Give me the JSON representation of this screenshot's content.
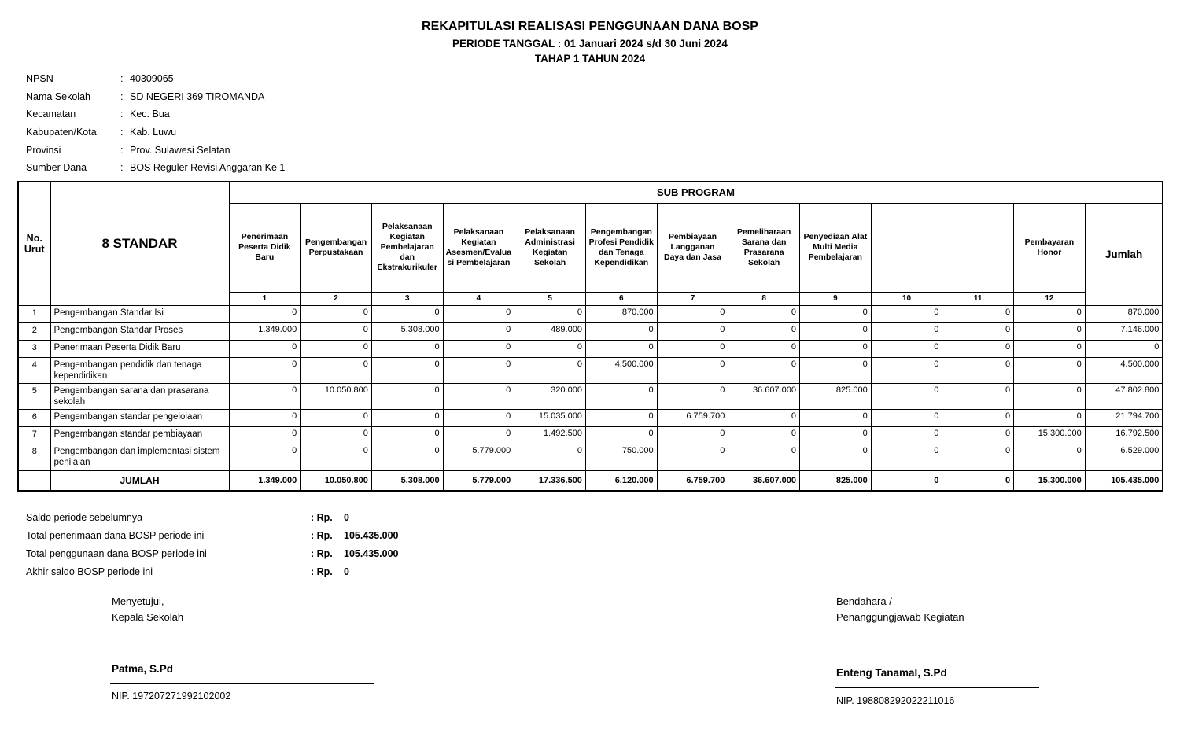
{
  "header": {
    "title": "REKAPITULASI REALISASI PENGGUNAAN DANA BOSP",
    "period": "PERIODE TANGGAL : 01 Januari 2024 s/d 30 Juni 2024",
    "phase": "TAHAP 1 TAHUN 2024"
  },
  "meta": {
    "separator": ":",
    "rows": [
      {
        "label": "NPSN",
        "value": "40309065"
      },
      {
        "label": "Nama Sekolah",
        "value": "SD NEGERI 369 TIROMANDA"
      },
      {
        "label": "Kecamatan",
        "value": "Kec. Bua"
      },
      {
        "label": "Kabupaten/Kota",
        "value": "Kab. Luwu"
      },
      {
        "label": "Provinsi",
        "value": "Prov. Sulawesi Selatan"
      },
      {
        "label": "Sumber Dana",
        "value": "BOS Reguler Revisi Anggaran Ke 1"
      }
    ]
  },
  "table": {
    "no_header": "No. Urut",
    "standar_header": "8 STANDAR",
    "subprogram_header": "SUB PROGRAM",
    "jumlah_header": "Jumlah",
    "columns": [
      {
        "num": "1",
        "name": "Penerimaan Peserta Didik Baru"
      },
      {
        "num": "2",
        "name": "Pengembangan Perpustakaan"
      },
      {
        "num": "3",
        "name": "Pelaksanaan Kegiatan Pembelajaran dan Ekstrakurikuler"
      },
      {
        "num": "4",
        "name": "Pelaksanaan Kegiatan Asesmen/Evaluasi Pembelajaran"
      },
      {
        "num": "5",
        "name": "Pelaksanaan Administrasi Kegiatan Sekolah"
      },
      {
        "num": "6",
        "name": "Pengembangan Profesi Pendidik dan Tenaga Kependidikan"
      },
      {
        "num": "7",
        "name": "Pembiayaan Langganan Daya dan Jasa"
      },
      {
        "num": "8",
        "name": "Pemeliharaan Sarana dan Prasarana Sekolah"
      },
      {
        "num": "9",
        "name": "Penyediaan Alat Multi Media Pembelajaran"
      },
      {
        "num": "10",
        "name": ""
      },
      {
        "num": "11",
        "name": ""
      },
      {
        "num": "12",
        "name": "Pembayaran Honor"
      }
    ],
    "rows": [
      {
        "no": "1",
        "name": "Pengembangan Standar Isi",
        "values": [
          "0",
          "0",
          "0",
          "0",
          "0",
          "870.000",
          "0",
          "0",
          "0",
          "0",
          "0",
          "0"
        ],
        "jumlah": "870.000"
      },
      {
        "no": "2",
        "name": "Pengembangan Standar Proses",
        "values": [
          "1.349.000",
          "0",
          "5.308.000",
          "0",
          "489.000",
          "0",
          "0",
          "0",
          "0",
          "0",
          "0",
          "0"
        ],
        "jumlah": "7.146.000"
      },
      {
        "no": "3",
        "name": "Penerimaan Peserta Didik Baru",
        "values": [
          "0",
          "0",
          "0",
          "0",
          "0",
          "0",
          "0",
          "0",
          "0",
          "0",
          "0",
          "0"
        ],
        "jumlah": "0"
      },
      {
        "no": "4",
        "name": "Pengembangan pendidik dan tenaga kependidikan",
        "values": [
          "0",
          "0",
          "0",
          "0",
          "0",
          "4.500.000",
          "0",
          "0",
          "0",
          "0",
          "0",
          "0"
        ],
        "jumlah": "4.500.000"
      },
      {
        "no": "5",
        "name": "Pengembangan sarana dan prasarana sekolah",
        "values": [
          "0",
          "10.050.800",
          "0",
          "0",
          "320.000",
          "0",
          "0",
          "36.607.000",
          "825.000",
          "0",
          "0",
          "0"
        ],
        "jumlah": "47.802.800"
      },
      {
        "no": "6",
        "name": "Pengembangan standar pengelolaan",
        "values": [
          "0",
          "0",
          "0",
          "0",
          "15.035.000",
          "0",
          "6.759.700",
          "0",
          "0",
          "0",
          "0",
          "0"
        ],
        "jumlah": "21.794.700"
      },
      {
        "no": "7",
        "name": "Pengembangan standar pembiayaan",
        "values": [
          "0",
          "0",
          "0",
          "0",
          "1.492.500",
          "0",
          "0",
          "0",
          "0",
          "0",
          "0",
          "15.300.000"
        ],
        "jumlah": "16.792.500"
      },
      {
        "no": "8",
        "name": "Pengembangan dan implementasi sistem penilaian",
        "values": [
          "0",
          "0",
          "0",
          "5.779.000",
          "0",
          "750.000",
          "0",
          "0",
          "0",
          "0",
          "0",
          "0"
        ],
        "jumlah": "6.529.000"
      }
    ],
    "total_row": {
      "label": "JUMLAH",
      "values": [
        "1.349.000",
        "10.050.800",
        "5.308.000",
        "5.779.000",
        "17.336.500",
        "6.120.000",
        "6.759.700",
        "36.607.000",
        "825.000",
        "0",
        "0",
        "15.300.000"
      ],
      "jumlah": "105.435.000"
    }
  },
  "summary": {
    "rows": [
      {
        "label": "Saldo periode sebelumnya",
        "prefix": ": Rp.",
        "value": "0"
      },
      {
        "label": "Total penerimaan dana BOSP periode ini",
        "prefix": ": Rp.",
        "value": "105.435.000"
      },
      {
        "label": "Total penggunaan dana BOSP periode ini",
        "prefix": ": Rp.",
        "value": "105.435.000"
      },
      {
        "label": "Akhir saldo BOSP periode ini",
        "prefix": ": Rp.",
        "value": "0"
      }
    ]
  },
  "signatures": {
    "left": {
      "role1": "Menyetujui,",
      "role2": "Kepala Sekolah",
      "name": "Patma, S.Pd",
      "nip": "NIP. 197207271992102002"
    },
    "right": {
      "role1": "Bendahara /",
      "role2": "Penanggungjawab Kegiatan",
      "name": "Enteng Tanamal, S.Pd",
      "nip": "NIP. 198808292022211016"
    }
  }
}
